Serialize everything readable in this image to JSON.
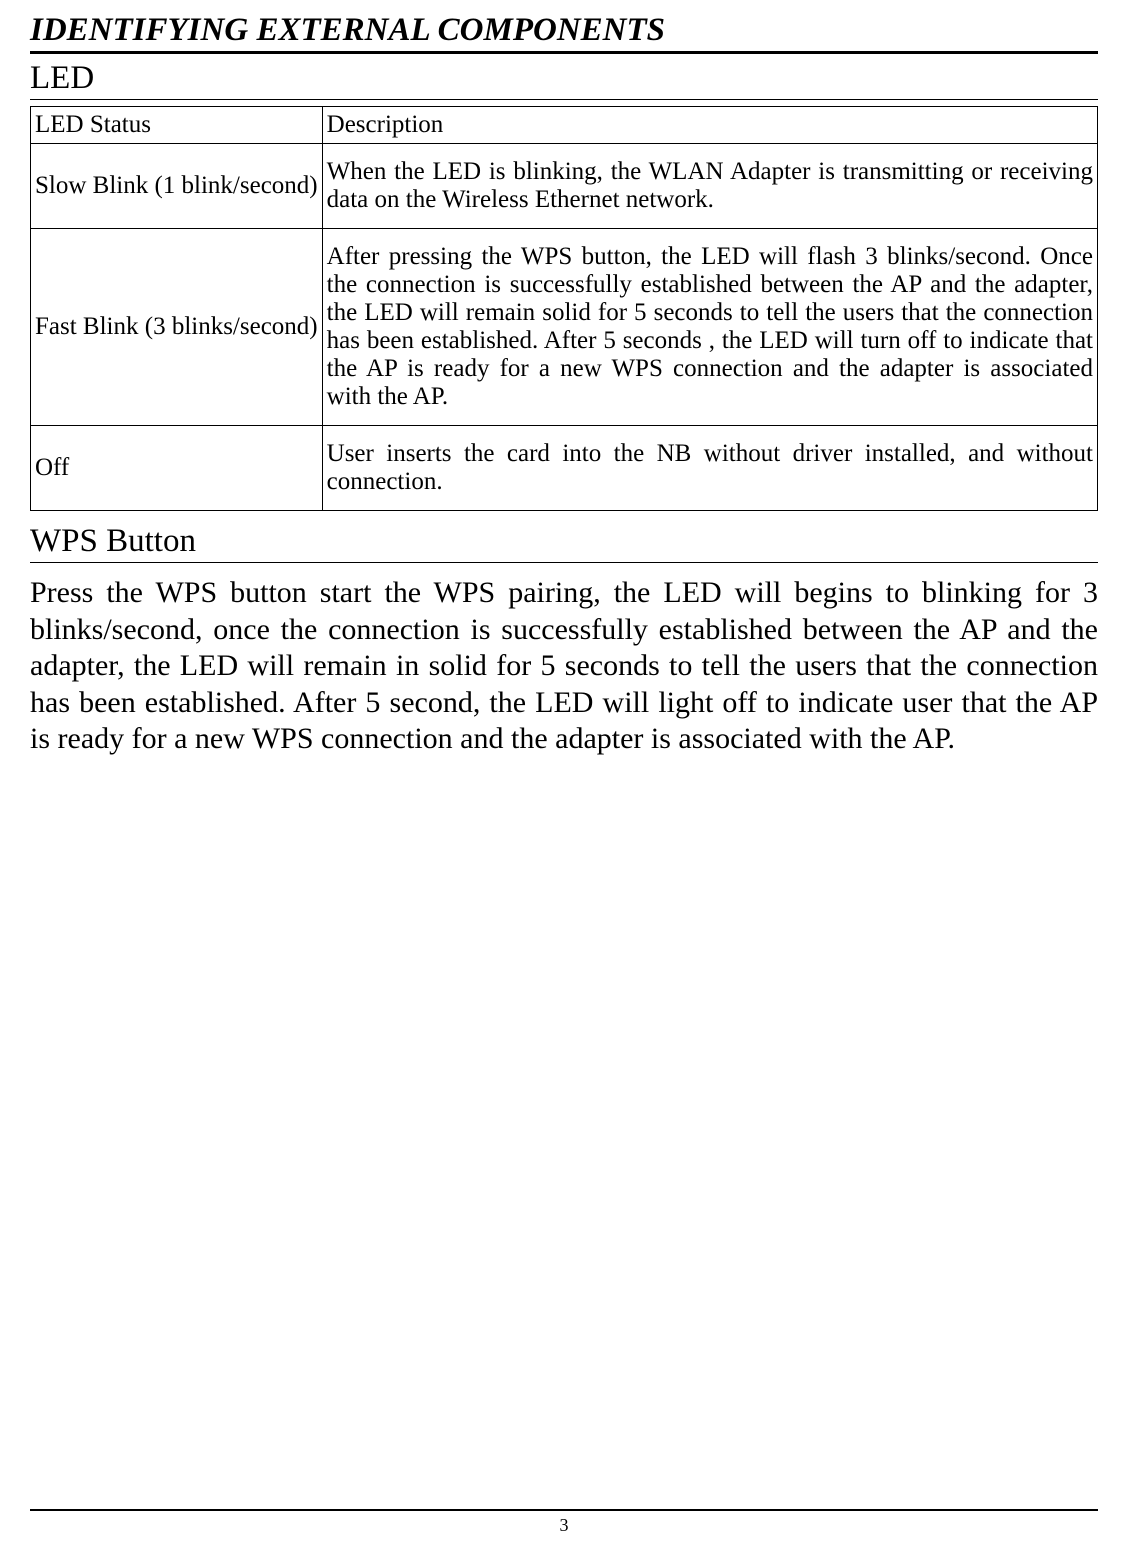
{
  "title": "IDENTIFYING EXTERNAL COMPONENTS",
  "led": {
    "heading": "LED",
    "columns": {
      "status": "LED Status",
      "description": "Description"
    },
    "rows": [
      {
        "status": "Slow Blink (1 blink/second)",
        "description": "When the LED is blinking, the WLAN Adapter is transmitting or receiving data on the Wireless Ethernet network."
      },
      {
        "status": "Fast Blink (3 blinks/second)",
        "description": "After pressing the WPS button, the LED will flash 3 blinks/second.  Once the connection is successfully established between the AP and the adapter, the LED will remain solid for 5 seconds to tell the users that the connection has been established. After 5 seconds , the LED will turn off to indicate that the AP is ready for a new WPS connection and the adapter is associated with the AP."
      },
      {
        "status": "Off",
        "description": "User inserts the card into the NB without driver installed, and without connection."
      }
    ]
  },
  "wps": {
    "heading": "WPS Button",
    "paragraph": "Press  the WPS button start the WPS pairing, the LED will begins to blinking for 3 blinks/second, once the connection is successfully established between the AP and the adapter, the LED will remain in solid for 5 seconds to tell the users that the connection has been established. After 5 second, the LED will light off to indicate user that the AP is ready for a new WPS connection and the adapter is associated with the AP."
  },
  "pageNumber": "3"
}
